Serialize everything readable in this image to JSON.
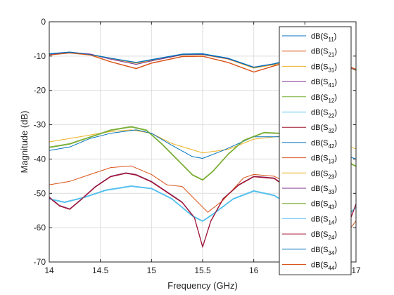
{
  "chart_data": {
    "type": "line",
    "xlabel": "Frequency (GHz)",
    "ylabel": "Magnitude (dB)",
    "xlim": [
      14,
      17
    ],
    "ylim": [
      -70,
      0
    ],
    "xticks": [
      14,
      14.5,
      15,
      15.5,
      16,
      16.5,
      17
    ],
    "xtick_labels": [
      "14",
      "14.5",
      "15",
      "15.5",
      "16",
      "16.5",
      "17"
    ],
    "yticks": [
      0,
      -10,
      -20,
      -30,
      -40,
      -50,
      -60,
      -70
    ],
    "ytick_labels": [
      "0",
      "-10",
      "-20",
      "-30",
      "-40",
      "-50",
      "-60",
      "-70"
    ],
    "grid": true,
    "legend_position": "top-right",
    "series": [
      {
        "name": "dB(S11)",
        "base": "dB(S",
        "sub": "11",
        "suffix": ")",
        "color": "#0072BD",
        "x": [
          14,
          14.2,
          14.4,
          14.6,
          14.85,
          15.0,
          15.3,
          15.5,
          15.75,
          16.0,
          16.2,
          16.5,
          16.7,
          17.0
        ],
        "y": [
          -9.3,
          -8.8,
          -9.5,
          -10.6,
          -11.8,
          -11.0,
          -9.4,
          -9.3,
          -10.6,
          -13.2,
          -12.2,
          -10.0,
          -10.4,
          -14.0
        ]
      },
      {
        "name": "dB(S21)",
        "base": "dB(S",
        "sub": "21",
        "suffix": ")",
        "color": "#D95319",
        "x": [
          14,
          14.2,
          14.4,
          14.6,
          14.85,
          15.0,
          15.3,
          15.5,
          15.75,
          16.0,
          16.2,
          16.5,
          16.7,
          17.0
        ],
        "y": [
          -9.6,
          -9.0,
          -9.6,
          -11.6,
          -13.6,
          -12.0,
          -10.1,
          -10.0,
          -11.8,
          -14.6,
          -12.8,
          -10.3,
          -10.6,
          -13.8
        ]
      },
      {
        "name": "dB(S31)",
        "base": "dB(S",
        "sub": "31",
        "suffix": ")",
        "color": "#EDB120",
        "x": [
          14,
          14.3,
          14.6,
          14.8,
          15.0,
          15.2,
          15.5,
          15.75,
          16.0,
          16.3,
          16.6,
          17.0
        ],
        "y": [
          -35.0,
          -33.5,
          -32.0,
          -31.5,
          -32.5,
          -35.5,
          -38.2,
          -37.2,
          -34.2,
          -33.2,
          -33.8,
          -37.0
        ]
      },
      {
        "name": "dB(S41)",
        "base": "dB(S",
        "sub": "41",
        "suffix": ")",
        "color": "#7E2F8E",
        "x": [
          14,
          14.1,
          14.2,
          14.3,
          14.45,
          14.6,
          14.75,
          14.85,
          15.0,
          15.15,
          15.3,
          15.42,
          15.5,
          15.58,
          15.7,
          15.85,
          16.0,
          16.2,
          16.5,
          16.7,
          16.85,
          17.0
        ],
        "y": [
          -51.0,
          -53.5,
          -54.5,
          -52.0,
          -48.0,
          -45.0,
          -44.0,
          -44.5,
          -46.5,
          -49.5,
          -52.5,
          -57.0,
          -65.5,
          -58.0,
          -51.5,
          -47.5,
          -45.0,
          -45.5,
          -52.0,
          -59.0,
          -65.0,
          -53.0
        ]
      },
      {
        "name": "dB(S12)",
        "base": "dB(S",
        "sub": "12",
        "suffix": ")",
        "color": "#77AC30",
        "x": [
          14,
          14.2,
          14.4,
          14.6,
          14.8,
          14.95,
          15.1,
          15.25,
          15.4,
          15.5,
          15.6,
          15.75,
          15.9,
          16.1,
          16.3,
          16.6,
          17.0
        ],
        "y": [
          -36.5,
          -35.5,
          -33.5,
          -31.5,
          -30.5,
          -31.5,
          -35.5,
          -40.0,
          -44.5,
          -46.0,
          -43.5,
          -38.5,
          -34.5,
          -32.2,
          -32.5,
          -36.0,
          -42.0
        ]
      },
      {
        "name": "dB(S22)",
        "base": "dB(S",
        "sub": "22",
        "suffix": ")",
        "color": "#4DBEEE",
        "x": [
          14,
          14.15,
          14.35,
          14.55,
          14.8,
          15.0,
          15.2,
          15.4,
          15.5,
          15.6,
          15.8,
          16.0,
          16.2,
          16.5,
          16.8,
          17.0
        ],
        "y": [
          -51.5,
          -52.5,
          -51.0,
          -49.0,
          -47.8,
          -48.5,
          -51.5,
          -56.5,
          -58.0,
          -56.0,
          -51.5,
          -49.2,
          -50.5,
          -56.0,
          -59.5,
          -54.0
        ]
      },
      {
        "name": "dB(S32)",
        "base": "dB(S",
        "sub": "32",
        "suffix": ")",
        "color": "#A2142F",
        "x": [
          14,
          14.1,
          14.2,
          14.3,
          14.45,
          14.6,
          14.75,
          14.85,
          15.0,
          15.15,
          15.3,
          15.42,
          15.5,
          15.58,
          15.7,
          15.85,
          16.0,
          16.2,
          16.5,
          16.7,
          16.85,
          17.0
        ],
        "y": [
          -51.3,
          -53.7,
          -54.7,
          -52.2,
          -48.2,
          -45.2,
          -44.2,
          -44.7,
          -46.7,
          -49.7,
          -52.7,
          -57.2,
          -65.7,
          -58.2,
          -51.7,
          -47.7,
          -45.2,
          -45.7,
          -52.2,
          -59.2,
          -65.2,
          -53.2
        ]
      },
      {
        "name": "dB(S42)",
        "base": "dB(S",
        "sub": "42",
        "suffix": ")",
        "color": "#0072BD",
        "x": [
          14,
          14.2,
          14.4,
          14.6,
          14.85,
          15.0,
          15.2,
          15.4,
          15.5,
          15.7,
          16.0,
          16.3,
          16.6,
          17.0
        ],
        "y": [
          -37.5,
          -36.5,
          -34.0,
          -32.5,
          -31.5,
          -32.5,
          -36.0,
          -39.3,
          -39.8,
          -37.5,
          -33.5,
          -33.5,
          -36.0,
          -40.0
        ]
      },
      {
        "name": "dB(S13)",
        "base": "dB(S",
        "sub": "13",
        "suffix": ")",
        "color": "#D95319",
        "x": [
          14,
          14.2,
          14.4,
          14.6,
          14.8,
          15.0,
          15.15,
          15.3,
          15.45,
          15.55,
          15.7,
          15.9,
          16.0,
          16.2,
          16.5,
          16.7,
          16.9,
          17.0
        ],
        "y": [
          -47.5,
          -46.5,
          -44.5,
          -42.5,
          -42.0,
          -44.5,
          -47.5,
          -48.0,
          -52.5,
          -55.5,
          -52.0,
          -45.5,
          -44.5,
          -45.0,
          -49.5,
          -55.0,
          -62.0,
          -58.0
        ]
      },
      {
        "name": "dB(S23)",
        "base": "dB(S",
        "sub": "23",
        "suffix": ")",
        "color": "#EDB120",
        "x": [
          14,
          14.2,
          14.4,
          14.6,
          14.85,
          15.0,
          15.3,
          15.5,
          15.75,
          16.0,
          16.2,
          16.5,
          16.7,
          17.0
        ],
        "y": [
          -9.7,
          -9.1,
          -9.7,
          -10.7,
          -12.1,
          -11.3,
          -9.7,
          -9.6,
          -10.9,
          -13.5,
          -12.5,
          -10.2,
          -10.6,
          -14.2
        ]
      },
      {
        "name": "dB(S33)",
        "base": "dB(S",
        "sub": "33",
        "suffix": ")",
        "color": "#7E2F8E",
        "x": [
          14,
          14.2,
          14.4,
          14.6,
          14.85,
          15.0,
          15.3,
          15.5,
          15.75,
          16.0,
          16.2,
          16.5,
          16.7,
          17.0
        ],
        "y": [
          -9.5,
          -8.9,
          -9.4,
          -10.9,
          -12.4,
          -11.4,
          -9.6,
          -9.5,
          -10.8,
          -13.3,
          -12.3,
          -10.1,
          -10.5,
          -14.1
        ]
      },
      {
        "name": "dB(S43)",
        "base": "dB(S",
        "sub": "43",
        "suffix": ")",
        "color": "#77AC30",
        "x": [
          14,
          14.2,
          14.4,
          14.6,
          14.8,
          14.95,
          15.1,
          15.25,
          15.4,
          15.5,
          15.6,
          15.75,
          15.9,
          16.1,
          16.3,
          16.6,
          17.0
        ],
        "y": [
          -36.7,
          -35.7,
          -33.7,
          -31.7,
          -30.7,
          -31.7,
          -35.7,
          -40.2,
          -44.7,
          -46.2,
          -43.7,
          -38.7,
          -34.7,
          -32.4,
          -32.7,
          -36.2,
          -42.2
        ]
      },
      {
        "name": "dB(S14)",
        "base": "dB(S",
        "sub": "14",
        "suffix": ")",
        "color": "#4DBEEE",
        "x": [
          14,
          14.15,
          14.35,
          14.55,
          14.8,
          15.0,
          15.2,
          15.4,
          15.5,
          15.6,
          15.8,
          16.0,
          16.2,
          16.5,
          16.8,
          17.0
        ],
        "y": [
          -51.7,
          -52.7,
          -51.2,
          -49.2,
          -48.0,
          -48.7,
          -51.7,
          -56.7,
          -58.2,
          -56.2,
          -51.7,
          -49.4,
          -50.7,
          -56.2,
          -59.7,
          -54.2
        ]
      },
      {
        "name": "dB(S24)",
        "base": "dB(S",
        "sub": "24",
        "suffix": ")",
        "color": "#A2142F",
        "x": [
          14,
          14.1,
          14.2,
          14.3,
          14.45,
          14.6,
          14.75,
          14.85,
          15.0,
          15.15,
          15.3,
          15.42,
          15.5,
          15.58,
          15.7,
          15.85,
          16.0,
          16.2,
          16.5,
          16.7,
          16.85,
          17.0
        ],
        "y": [
          -51.2,
          -53.6,
          -54.6,
          -52.1,
          -48.1,
          -45.1,
          -44.1,
          -44.6,
          -46.6,
          -49.6,
          -52.6,
          -57.1,
          -65.6,
          -58.1,
          -51.6,
          -47.6,
          -45.1,
          -45.6,
          -52.1,
          -59.1,
          -65.1,
          -53.1
        ]
      },
      {
        "name": "dB(S34)",
        "base": "dB(S",
        "sub": "34",
        "suffix": ")",
        "color": "#0072BD",
        "x": [
          14,
          14.2,
          14.4,
          14.6,
          14.85,
          15.0,
          15.3,
          15.5,
          15.75,
          16.0,
          16.2,
          16.5,
          16.7,
          17.0
        ],
        "y": [
          -9.4,
          -8.85,
          -9.55,
          -10.65,
          -11.9,
          -11.1,
          -9.5,
          -9.4,
          -10.7,
          -13.3,
          -12.3,
          -10.05,
          -10.45,
          -14.05
        ]
      },
      {
        "name": "dB(S44)",
        "base": "dB(S",
        "sub": "44",
        "suffix": ")",
        "color": "#D95319",
        "x": [
          14,
          14.2,
          14.4,
          14.6,
          14.85,
          15.0,
          15.3,
          15.5,
          15.75,
          16.0,
          16.2,
          16.5,
          16.7,
          17.0
        ],
        "y": [
          -9.7,
          -9.1,
          -9.7,
          -11.7,
          -13.7,
          -12.1,
          -10.2,
          -10.1,
          -11.9,
          -14.7,
          -12.9,
          -10.4,
          -10.7,
          -13.9
        ]
      }
    ]
  }
}
